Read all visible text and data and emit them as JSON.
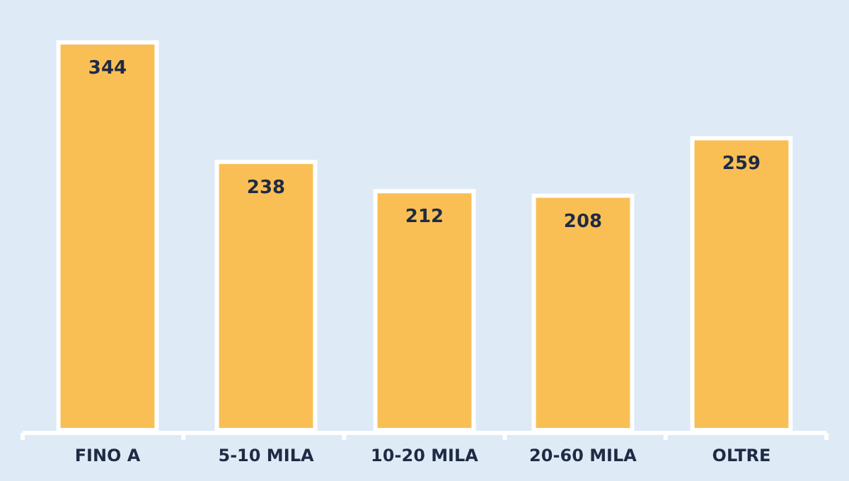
{
  "chart_data": {
    "type": "bar",
    "categories": [
      "FINO A",
      "5-10 MILA",
      "10-20 MILA",
      "20-60 MILA",
      "OLTRE"
    ],
    "values": [
      344,
      238,
      212,
      208,
      259
    ],
    "color": "#f9bf55",
    "data_labels": true,
    "grid": false
  }
}
